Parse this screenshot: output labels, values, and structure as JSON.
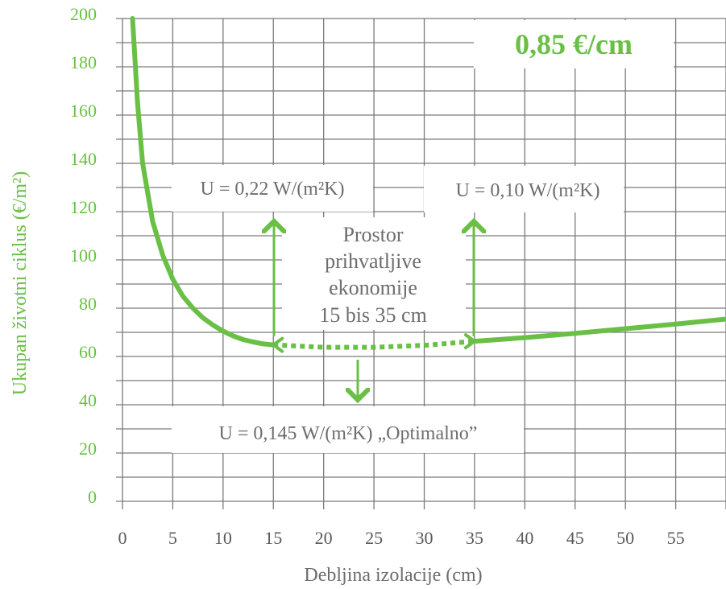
{
  "chart_data": {
    "type": "line",
    "xlabel": "Debljina izolacije (cm)",
    "ylabel": "Ukupan životni ciklus (€/m²)",
    "xlim": [
      0,
      60
    ],
    "ylim": [
      0,
      200
    ],
    "x_ticks": [
      "0",
      "5",
      "10",
      "15",
      "20",
      "25",
      "30",
      "35",
      "40",
      "45",
      "50",
      "55"
    ],
    "y_ticks": [
      "0",
      "20",
      "40",
      "60",
      "80",
      "100",
      "120",
      "140",
      "160",
      "180",
      "200"
    ],
    "grid": true,
    "series": [
      {
        "color": "#6abf45",
        "segments": [
          {
            "style": "solid",
            "points": [
              [
                1,
                200
              ],
              [
                1.5,
                165
              ],
              [
                2,
                140
              ],
              [
                3,
                116
              ],
              [
                4,
                102
              ],
              [
                5,
                92
              ],
              [
                6,
                85
              ],
              [
                7,
                80
              ],
              [
                8,
                76
              ],
              [
                9,
                73
              ],
              [
                10,
                70.5
              ],
              [
                11,
                68.5
              ],
              [
                12,
                67
              ],
              [
                13,
                66
              ],
              [
                14,
                65.2
              ],
              [
                15,
                64.8
              ]
            ]
          },
          {
            "style": "dotted",
            "points": [
              [
                15,
                64.8
              ],
              [
                20,
                63.8
              ],
              [
                25,
                63.8
              ],
              [
                30,
                64.6
              ],
              [
                35,
                66.3
              ]
            ]
          },
          {
            "style": "solid",
            "points": [
              [
                35,
                66.3
              ],
              [
                40,
                67.8
              ],
              [
                45,
                69.6
              ],
              [
                50,
                71.5
              ],
              [
                55,
                73.4
              ],
              [
                60,
                75.5
              ]
            ]
          }
        ]
      }
    ],
    "price_label": "0,85 €/cm",
    "annotations": {
      "u_left": "U = 0,22 W/(m²K)",
      "u_right": "U = 0,10 W/(m²K)",
      "u_optimal": "U = 0,145 W/(m²K) „Optimalno”",
      "range_lines": [
        "Prostor",
        "prihvatljive",
        "ekonomije",
        "15 bis 35 cm"
      ]
    }
  }
}
